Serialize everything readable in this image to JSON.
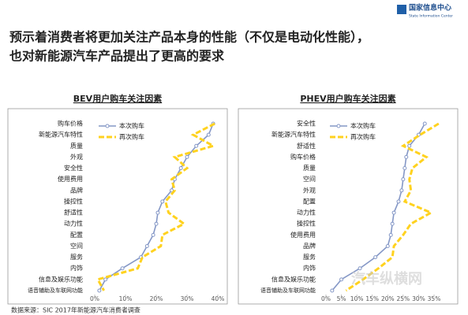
{
  "header": {
    "title_lines": [
      "预示着消费者将更加关注产品本身的性能（不仅是电动化性能），",
      "也对新能源汽车产品提出了更高的要求"
    ],
    "logo": "国家信息中心",
    "logo_en": "State Information Center",
    "source": "数据来源：SIC 2017年新能源汽车消费者调查",
    "watermark": "汽车纵横网"
  },
  "chart_data": [
    {
      "type": "line",
      "orientation": "horizontal",
      "title": "BEV用户购车关注因素",
      "categories": [
        "购车价格",
        "新能源汽车特性",
        "质量",
        "外观",
        "安全性",
        "使用费用",
        "品牌",
        "操控性",
        "舒适性",
        "动力性",
        "配置",
        "空间",
        "服务",
        "内饰",
        "信息及娱乐功能",
        "语音辅助及车联网功能"
      ],
      "series": [
        {
          "name": "本次购车",
          "color": "#8497c6",
          "values": [
            38.5,
            37,
            33,
            30,
            28,
            26,
            25,
            22,
            20.5,
            20,
            19,
            17,
            15,
            9,
            3.5,
            1.5
          ]
        },
        {
          "name": "再次购车",
          "color": "#ffd21f",
          "values": [
            39,
            32,
            38.5,
            26,
            30,
            25,
            26,
            23,
            24,
            29,
            22,
            21.5,
            15.5,
            14,
            1,
            3
          ]
        }
      ],
      "xlim": [
        0,
        40
      ],
      "xticks": [
        {
          "value": 0,
          "label": "0%"
        },
        {
          "value": 10,
          "label": "10%"
        },
        {
          "value": 20,
          "label": "20%"
        },
        {
          "value": 30,
          "label": "30%"
        },
        {
          "value": 40,
          "label": "40%"
        }
      ],
      "legend": "upper left",
      "grid": false
    },
    {
      "type": "line",
      "orientation": "horizontal",
      "title": "PHEV用户购车关注因素",
      "categories": [
        "安全性",
        "新能源汽车特性",
        "舒适性",
        "购车价格",
        "质量",
        "空间",
        "外观",
        "配置",
        "动力性",
        "操控性",
        "使用费用",
        "品牌",
        "服务",
        "内饰",
        "信息及娱乐功能",
        "语音辅助及车联网功能"
      ],
      "series": [
        {
          "name": "本次购车",
          "color": "#8497c6",
          "values": [
            32,
            30,
            27,
            26,
            25.5,
            25,
            24.5,
            23.5,
            22,
            21.5,
            21,
            20,
            16,
            11,
            5,
            2
          ]
        },
        {
          "name": "再次购车",
          "color": "#ffd21f",
          "values": [
            36.5,
            30.5,
            25,
            32.5,
            28,
            27,
            27.5,
            25.5,
            34,
            27.5,
            25,
            22,
            21.5,
            17,
            12,
            6.5
          ]
        }
      ],
      "xlim": [
        0,
        35
      ],
      "xticks": [
        {
          "value": 0,
          "label": "0%"
        },
        {
          "value": 5,
          "label": "5%"
        },
        {
          "value": 10,
          "label": "10%"
        },
        {
          "value": 15,
          "label": "15%"
        },
        {
          "value": 20,
          "label": "20%"
        },
        {
          "value": 25,
          "label": "25%"
        },
        {
          "value": 30,
          "label": "30%"
        },
        {
          "value": 35,
          "label": "35%"
        }
      ],
      "legend": "upper left",
      "grid": false
    }
  ]
}
